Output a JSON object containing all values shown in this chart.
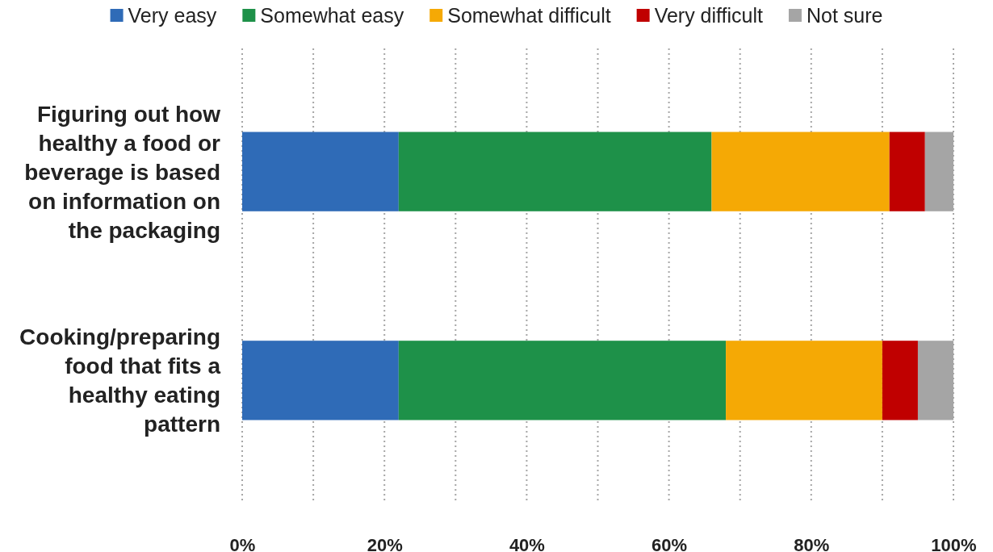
{
  "chart_data": {
    "type": "bar",
    "orientation": "horizontal",
    "stacked": true,
    "categories": [
      "Figuring out how healthy a food or beverage is based on information on the packaging",
      "Cooking/preparing food that fits a healthy eating pattern"
    ],
    "series": [
      {
        "name": "Very easy",
        "color": "#2f6bb7",
        "values": [
          22,
          22
        ]
      },
      {
        "name": "Somewhat easy",
        "color": "#1e9149",
        "values": [
          44,
          46
        ]
      },
      {
        "name": "Somewhat difficult",
        "color": "#f5a905",
        "values": [
          25,
          22
        ]
      },
      {
        "name": "Very difficult",
        "color": "#c00000",
        "values": [
          5,
          5
        ]
      },
      {
        "name": "Not sure",
        "color": "#a5a5a5",
        "values": [
          4,
          5
        ]
      }
    ],
    "xlim": [
      0,
      100
    ],
    "xticks": [
      {
        "value": 0,
        "label": "0%"
      },
      {
        "value": 10,
        "label": null
      },
      {
        "value": 20,
        "label": "20%"
      },
      {
        "value": 30,
        "label": null
      },
      {
        "value": 40,
        "label": "40%"
      },
      {
        "value": 50,
        "label": null
      },
      {
        "value": 60,
        "label": "60%"
      },
      {
        "value": 70,
        "label": null
      },
      {
        "value": 80,
        "label": "80%"
      },
      {
        "value": 90,
        "label": null
      },
      {
        "value": 100,
        "label": "100%"
      }
    ],
    "grid": "x",
    "legend": "top"
  }
}
